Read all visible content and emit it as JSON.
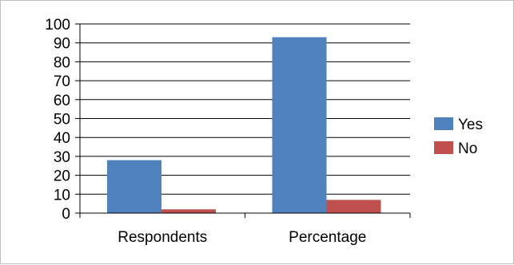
{
  "chart_data": {
    "type": "bar",
    "categories": [
      "Respondents",
      "Percentage"
    ],
    "series": [
      {
        "name": "Yes",
        "values": [
          28,
          93
        ],
        "color": "#4f81bd"
      },
      {
        "name": "No",
        "values": [
          2,
          7
        ],
        "color": "#c0504d"
      }
    ],
    "yticks": [
      "0",
      "10",
      "20",
      "30",
      "40",
      "50",
      "60",
      "70",
      "80",
      "90",
      "100"
    ],
    "ylim": [
      0,
      100
    ],
    "grid": true,
    "legend_position": "right"
  }
}
